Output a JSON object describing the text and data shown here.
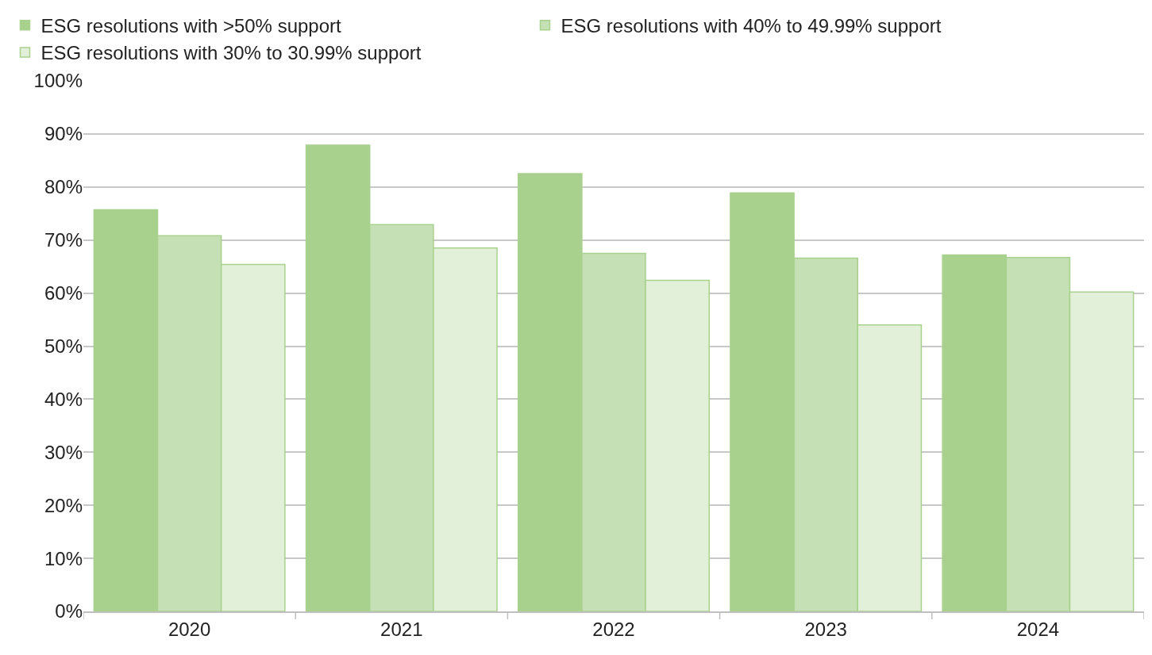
{
  "chart_data": {
    "type": "bar",
    "categories": [
      "2020",
      "2021",
      "2022",
      "2023",
      "2024"
    ],
    "series": [
      {
        "name": "ESG resolutions with >50% support",
        "color": "#a9d18e",
        "values": [
          75.7,
          87.9,
          82.5,
          78.9,
          67.2
        ]
      },
      {
        "name": "ESG resolutions with 40% to 49.99% support",
        "color": "#c5e0b4",
        "values": [
          70.8,
          72.9,
          67.5,
          66.6,
          66.7
        ]
      },
      {
        "name": "ESG resolutions with 30% to 30.99% support",
        "color": "#e2f0d9",
        "values": [
          65.4,
          68.5,
          62.4,
          54.0,
          60.2
        ]
      }
    ],
    "ylim": [
      0,
      100
    ],
    "yticks": [
      {
        "value": 0,
        "label": "0%"
      },
      {
        "value": 10,
        "label": "10%"
      },
      {
        "value": 20,
        "label": "20%"
      },
      {
        "value": 30,
        "label": "30%"
      },
      {
        "value": 40,
        "label": "40%"
      },
      {
        "value": 50,
        "label": "50%"
      },
      {
        "value": 60,
        "label": "60%"
      },
      {
        "value": 70,
        "label": "70%"
      },
      {
        "value": 80,
        "label": "80%"
      },
      {
        "value": 90,
        "label": "90%"
      },
      {
        "value": 100,
        "label": "100%"
      }
    ],
    "grid": "y",
    "legend": "top left"
  }
}
